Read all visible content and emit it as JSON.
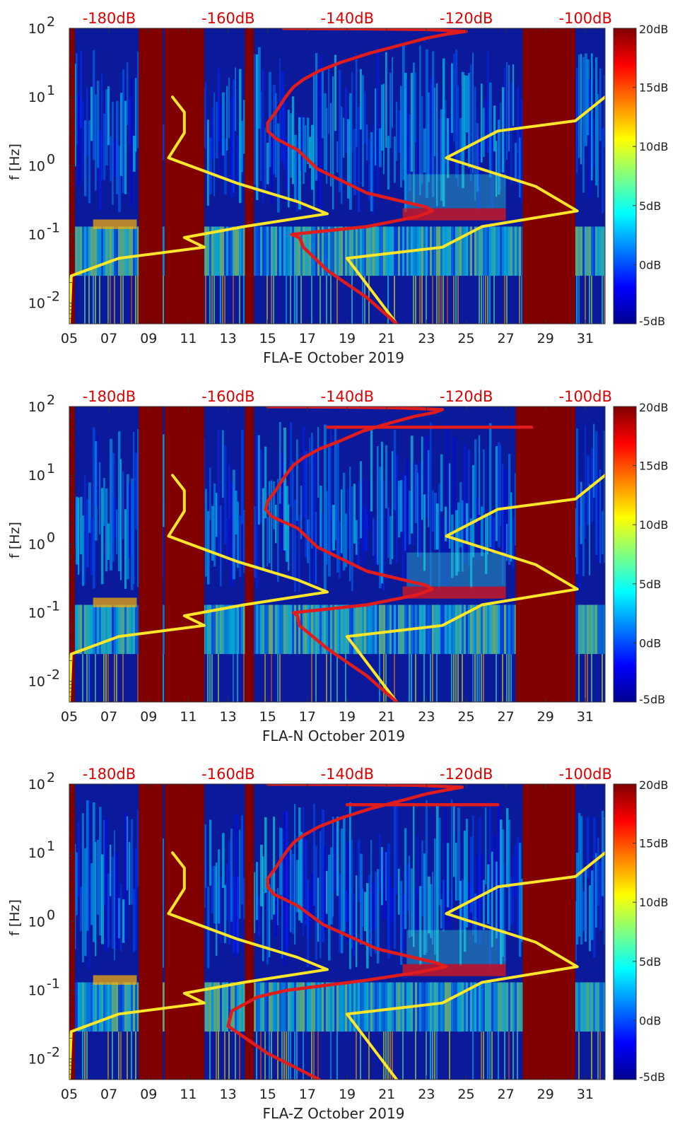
{
  "figure": {
    "colors": {
      "background_low": "#0a1a9a",
      "gap_fill": "#800000",
      "red_curve": "#e01c1c",
      "yellow_curve": "#ffe628",
      "top_label_color": "#dd0000"
    },
    "colormap": [
      "#00008f",
      "#0000ff",
      "#0080ff",
      "#00ffff",
      "#80ff80",
      "#ffff00",
      "#ff8000",
      "#ff0000",
      "#800000"
    ]
  },
  "chart_data": [
    {
      "type": "heatmap",
      "title": "",
      "xlabel": "FLA-E October 2019",
      "ylabel": "f [Hz]",
      "x_unit": "day of October 2019",
      "xlim": [
        5,
        32
      ],
      "ylim": [
        0.005,
        100
      ],
      "y_scale": "log",
      "x_ticks": [
        "05",
        "07",
        "09",
        "11",
        "13",
        "15",
        "17",
        "19",
        "21",
        "23",
        "25",
        "27",
        "29",
        "31"
      ],
      "y_ticks": [
        {
          "base": "10",
          "exp": "2"
        },
        {
          "base": "10",
          "exp": "1"
        },
        {
          "base": "10",
          "exp": "0"
        },
        {
          "base": "10",
          "exp": "-1"
        },
        {
          "base": "10",
          "exp": "-2"
        }
      ],
      "top_ticks": [
        "-180dB",
        "-160dB",
        "-140dB",
        "-120dB",
        "-100dB"
      ],
      "top_axis_range_dB": [
        -186.7,
        -96.7
      ],
      "colorbar": {
        "range": [
          -5,
          20
        ],
        "ticks": [
          "20dB",
          "15dB",
          "10dB",
          "5dB",
          "0dB",
          "-5dB"
        ]
      },
      "gaps": [
        [
          8.5,
          9.7
        ],
        [
          9.8,
          11.8
        ],
        [
          13.85,
          14.3
        ],
        [
          27.85,
          30.5
        ]
      ],
      "series": [
        {
          "points": [
            [
              5.0,
              0.005
            ],
            [
              5.1,
              0.025
            ],
            [
              7.5,
              0.045
            ],
            [
              11.8,
              0.065
            ],
            [
              10.8,
              0.09
            ],
            [
              13.8,
              0.13
            ],
            [
              18.0,
              0.2
            ],
            [
              16.5,
              0.3
            ],
            [
              13.5,
              0.55
            ],
            [
              10.0,
              1.3
            ],
            [
              10.8,
              3.0
            ],
            [
              10.8,
              6.0
            ],
            [
              10.2,
              10.0
            ]
          ]
        },
        {
          "points": [
            [
              21.5,
              0.005
            ],
            [
              19.0,
              0.045
            ],
            [
              23.8,
              0.065
            ],
            [
              25.8,
              0.13
            ],
            [
              30.6,
              0.22
            ],
            [
              28.5,
              0.5
            ],
            [
              24.0,
              1.3
            ],
            [
              26.6,
              3.2
            ],
            [
              30.5,
              4.5
            ],
            [
              32.0,
              10.0
            ]
          ]
        },
        {
          "points": [
            [
              21.5,
              0.005
            ],
            [
              20.0,
              0.012
            ],
            [
              18.0,
              0.03
            ],
            [
              16.8,
              0.065
            ],
            [
              16.6,
              0.09
            ],
            [
              16.2,
              0.1
            ],
            [
              20.0,
              0.13
            ],
            [
              22.5,
              0.18
            ],
            [
              23.3,
              0.22
            ],
            [
              23.0,
              0.25
            ],
            [
              20.0,
              0.4
            ],
            [
              17.5,
              0.9
            ],
            [
              16.5,
              1.7
            ],
            [
              15.4,
              2.5
            ],
            [
              15.0,
              3.2
            ],
            [
              15.0,
              4.2
            ],
            [
              15.4,
              6.0
            ],
            [
              15.9,
              10.0
            ],
            [
              16.3,
              14.0
            ],
            [
              16.8,
              18.0
            ],
            [
              17.6,
              24.0
            ],
            [
              18.7,
              32.0
            ],
            [
              20.2,
              44.0
            ],
            [
              21.8,
              58.0
            ],
            [
              23.0,
              72.0
            ],
            [
              24.0,
              82.0
            ],
            [
              25.0,
              90.0
            ],
            [
              23.0,
              96.0
            ],
            [
              19.0,
              98.5
            ],
            [
              15.8,
              99.5
            ]
          ]
        }
      ]
    },
    {
      "type": "heatmap",
      "title": "",
      "xlabel": "FLA-N October 2019",
      "ylabel": "f [Hz]",
      "x_unit": "day of October 2019",
      "xlim": [
        5,
        32
      ],
      "ylim": [
        0.005,
        100
      ],
      "y_scale": "log",
      "x_ticks": [
        "05",
        "07",
        "09",
        "11",
        "13",
        "15",
        "17",
        "19",
        "21",
        "23",
        "25",
        "27",
        "29",
        "31"
      ],
      "y_ticks": [
        {
          "base": "10",
          "exp": "2"
        },
        {
          "base": "10",
          "exp": "1"
        },
        {
          "base": "10",
          "exp": "0"
        },
        {
          "base": "10",
          "exp": "-1"
        },
        {
          "base": "10",
          "exp": "-2"
        }
      ],
      "top_ticks": [
        "-180dB",
        "-160dB",
        "-140dB",
        "-120dB",
        "-100dB"
      ],
      "top_axis_range_dB": [
        -186.7,
        -96.7
      ],
      "colorbar": {
        "range": [
          -5,
          20
        ],
        "ticks": [
          "20dB",
          "15dB",
          "10dB",
          "5dB",
          "0dB",
          "-5dB"
        ]
      },
      "gaps": [
        [
          8.5,
          9.7
        ],
        [
          9.8,
          11.8
        ],
        [
          13.85,
          14.3
        ],
        [
          27.5,
          30.5
        ]
      ],
      "series": [
        {
          "points": [
            [
              5.0,
              0.005
            ],
            [
              5.1,
              0.025
            ],
            [
              7.5,
              0.045
            ],
            [
              11.8,
              0.065
            ],
            [
              10.8,
              0.09
            ],
            [
              13.8,
              0.13
            ],
            [
              18.0,
              0.2
            ],
            [
              16.5,
              0.3
            ],
            [
              13.5,
              0.55
            ],
            [
              10.0,
              1.3
            ],
            [
              10.8,
              3.0
            ],
            [
              10.8,
              6.0
            ],
            [
              10.2,
              10.0
            ]
          ]
        },
        {
          "points": [
            [
              21.5,
              0.005
            ],
            [
              19.0,
              0.045
            ],
            [
              23.8,
              0.065
            ],
            [
              25.8,
              0.13
            ],
            [
              30.6,
              0.22
            ],
            [
              28.5,
              0.5
            ],
            [
              24.0,
              1.3
            ],
            [
              26.6,
              3.2
            ],
            [
              30.5,
              4.5
            ],
            [
              32.0,
              10.0
            ]
          ]
        },
        {
          "points": [
            [
              21.5,
              0.005
            ],
            [
              20.0,
              0.012
            ],
            [
              18.0,
              0.03
            ],
            [
              16.6,
              0.065
            ],
            [
              16.5,
              0.09
            ],
            [
              16.3,
              0.1
            ],
            [
              20.0,
              0.13
            ],
            [
              22.5,
              0.18
            ],
            [
              23.3,
              0.22
            ],
            [
              23.0,
              0.25
            ],
            [
              20.0,
              0.4
            ],
            [
              17.5,
              0.9
            ],
            [
              16.5,
              1.7
            ],
            [
              15.2,
              2.5
            ],
            [
              14.9,
              3.2
            ],
            [
              15.0,
              4.2
            ],
            [
              15.4,
              6.0
            ],
            [
              15.9,
              10.0
            ],
            [
              16.3,
              14.0
            ],
            [
              16.8,
              18.0
            ],
            [
              17.6,
              24.0
            ],
            [
              18.7,
              32.0
            ],
            [
              19.8,
              44.0
            ],
            [
              21.2,
              58.0
            ],
            [
              22.4,
              72.0
            ],
            [
              23.4,
              82.0
            ],
            [
              23.8,
              90.0
            ],
            [
              21.5,
              96.0
            ],
            [
              18.0,
              98.5
            ],
            [
              15.0,
              99.5
            ]
          ]
        },
        {
          "points": [
            [
              18.0,
              50.0
            ],
            [
              28.3,
              50.0
            ]
          ]
        }
      ]
    },
    {
      "type": "heatmap",
      "title": "",
      "xlabel": "FLA-Z October 2019",
      "ylabel": "f [Hz]",
      "x_unit": "day of October 2019",
      "xlim": [
        5,
        32
      ],
      "ylim": [
        0.005,
        100
      ],
      "y_scale": "log",
      "x_ticks": [
        "05",
        "07",
        "09",
        "11",
        "13",
        "15",
        "17",
        "19",
        "21",
        "23",
        "25",
        "27",
        "29",
        "31"
      ],
      "y_ticks": [
        {
          "base": "10",
          "exp": "2"
        },
        {
          "base": "10",
          "exp": "1"
        },
        {
          "base": "10",
          "exp": "0"
        },
        {
          "base": "10",
          "exp": "-1"
        },
        {
          "base": "10",
          "exp": "-2"
        }
      ],
      "top_ticks": [
        "-180dB",
        "-160dB",
        "-140dB",
        "-120dB",
        "-100dB"
      ],
      "top_axis_range_dB": [
        -186.7,
        -96.7
      ],
      "colorbar": {
        "range": [
          -5,
          20
        ],
        "ticks": [
          "20dB",
          "15dB",
          "10dB",
          "5dB",
          "0dB",
          "-5dB"
        ]
      },
      "gaps": [
        [
          8.5,
          9.7
        ],
        [
          9.8,
          11.8
        ],
        [
          13.85,
          14.3
        ],
        [
          27.85,
          30.5
        ]
      ],
      "series": [
        {
          "points": [
            [
              5.0,
              0.005
            ],
            [
              5.1,
              0.025
            ],
            [
              7.5,
              0.045
            ],
            [
              11.8,
              0.065
            ],
            [
              10.8,
              0.09
            ],
            [
              13.8,
              0.13
            ],
            [
              18.0,
              0.2
            ],
            [
              16.5,
              0.3
            ],
            [
              13.5,
              0.55
            ],
            [
              10.0,
              1.3
            ],
            [
              10.8,
              3.0
            ],
            [
              10.8,
              6.0
            ],
            [
              10.2,
              10.0
            ]
          ]
        },
        {
          "points": [
            [
              21.5,
              0.005
            ],
            [
              19.0,
              0.045
            ],
            [
              23.8,
              0.065
            ],
            [
              25.8,
              0.13
            ],
            [
              30.6,
              0.22
            ],
            [
              28.5,
              0.5
            ],
            [
              24.0,
              1.3
            ],
            [
              26.6,
              3.2
            ],
            [
              30.5,
              4.5
            ],
            [
              32.0,
              10.0
            ]
          ]
        },
        {
          "points": [
            [
              17.6,
              0.005
            ],
            [
              15.0,
              0.012
            ],
            [
              13.0,
              0.03
            ],
            [
              13.2,
              0.05
            ],
            [
              14.5,
              0.08
            ],
            [
              16.0,
              0.1
            ],
            [
              20.0,
              0.14
            ],
            [
              22.5,
              0.18
            ],
            [
              24.0,
              0.22
            ],
            [
              23.5,
              0.25
            ],
            [
              20.5,
              0.4
            ],
            [
              17.8,
              0.9
            ],
            [
              16.5,
              1.7
            ],
            [
              15.3,
              2.5
            ],
            [
              15.0,
              3.2
            ],
            [
              15.0,
              4.2
            ],
            [
              15.4,
              6.0
            ],
            [
              15.9,
              10.0
            ],
            [
              16.3,
              14.0
            ],
            [
              16.8,
              18.0
            ],
            [
              17.6,
              24.0
            ],
            [
              18.7,
              32.0
            ],
            [
              20.2,
              44.0
            ],
            [
              21.8,
              58.0
            ],
            [
              23.0,
              72.0
            ],
            [
              24.0,
              82.0
            ],
            [
              24.8,
              90.0
            ],
            [
              22.5,
              96.0
            ],
            [
              18.5,
              98.5
            ],
            [
              15.0,
              99.5
            ]
          ]
        },
        {
          "points": [
            [
              19.0,
              50.0
            ],
            [
              26.6,
              50.0
            ]
          ]
        }
      ]
    }
  ]
}
